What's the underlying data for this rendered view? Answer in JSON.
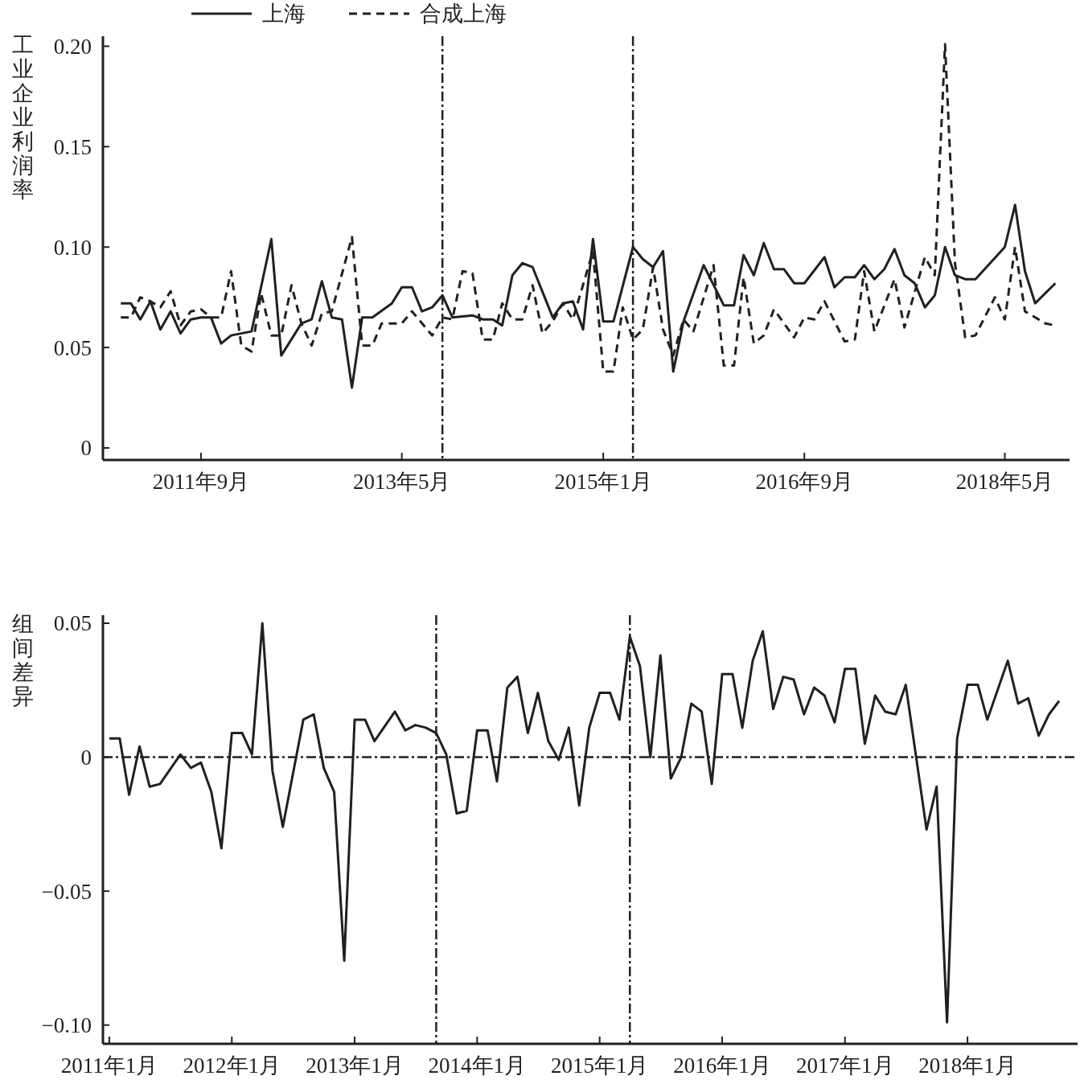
{
  "chart_data": [
    {
      "type": "line",
      "ylabel": "工业企业利润率",
      "legend": "top",
      "xlim": [
        "2010-11-08",
        "2018-11-13"
      ],
      "ylim": [
        -0.006,
        0.205
      ],
      "xticks": [
        {
          "value": "2011-09",
          "label": "2011年9月"
        },
        {
          "value": "2013-05",
          "label": "2013年5月"
        },
        {
          "value": "2015-01",
          "label": "2015年1月"
        },
        {
          "value": "2016-09",
          "label": "2016年9月"
        },
        {
          "value": "2018-05",
          "label": "2018年5月"
        }
      ],
      "yticks": [
        0,
        0.05,
        {
          "value": 0.1,
          "label": "0.10"
        },
        0.15,
        {
          "value": 0.2,
          "label": "0.20"
        }
      ],
      "ref_lines": [
        {
          "axis": "x",
          "value": "2013-09"
        },
        {
          "axis": "x",
          "value": "2015-04"
        }
      ],
      "series": [
        {
          "name": "上海",
          "color": "#231f20",
          "line_style": "solid",
          "x": [
            "2011-01",
            "2011-02",
            "2011-03",
            "2011-04",
            "2011-05",
            "2011-06",
            "2011-07",
            "2011-08",
            "2011-09",
            "2011-10",
            "2011-11",
            "2011-12",
            "2012-01",
            "2012-02",
            "2012-04",
            "2012-05",
            "2012-07",
            "2012-08",
            "2012-09",
            "2012-10",
            "2012-11",
            "2012-12",
            "2013-01",
            "2013-02",
            "2013-04",
            "2013-05",
            "2013-06",
            "2013-07",
            "2013-08",
            "2013-09",
            "2013-10",
            "2013-12",
            "2014-01",
            "2014-02",
            "2014-03",
            "2014-04",
            "2014-05",
            "2014-06",
            "2014-08",
            "2014-09",
            "2014-10",
            "2014-11",
            "2014-12",
            "2015-01",
            "2015-02",
            "2015-04",
            "2015-05",
            "2015-06",
            "2015-07",
            "2015-08",
            "2015-09",
            "2015-11",
            "2016-01",
            "2016-02",
            "2016-03",
            "2016-04",
            "2016-05",
            "2016-06",
            "2016-07",
            "2016-08",
            "2016-09",
            "2016-11",
            "2016-12",
            "2017-01",
            "2017-02",
            "2017-03",
            "2017-04",
            "2017-05",
            "2017-06",
            "2017-07",
            "2017-08",
            "2017-09",
            "2017-10",
            "2017-11",
            "2017-12",
            "2018-01",
            "2018-02",
            "2018-05",
            "2018-06",
            "2018-07",
            "2018-08",
            "2018-10"
          ],
          "values": [
            0.072,
            0.072,
            0.064,
            0.073,
            0.059,
            0.068,
            0.057,
            0.064,
            0.065,
            0.065,
            0.052,
            0.056,
            0.057,
            0.058,
            0.104,
            0.046,
            0.062,
            0.064,
            0.083,
            0.065,
            0.064,
            0.03,
            0.065,
            0.065,
            0.072,
            0.08,
            0.08,
            0.068,
            0.07,
            0.076,
            0.065,
            0.066,
            0.064,
            0.064,
            0.061,
            0.086,
            0.092,
            0.09,
            0.065,
            0.072,
            0.073,
            0.059,
            0.104,
            0.063,
            0.063,
            0.1,
            0.094,
            0.09,
            0.098,
            0.038,
            0.063,
            0.091,
            0.071,
            0.071,
            0.096,
            0.086,
            0.102,
            0.089,
            0.089,
            0.082,
            0.082,
            0.095,
            0.08,
            0.085,
            0.085,
            0.091,
            0.084,
            0.089,
            0.099,
            0.086,
            0.082,
            0.07,
            0.076,
            0.1,
            0.086,
            0.084,
            0.084,
            0.1,
            0.121,
            0.088,
            0.072,
            0.082
          ]
        },
        {
          "name": "合成上海",
          "color": "#231f20",
          "line_style": "dashed",
          "x": [
            "2011-01",
            "2011-02",
            "2011-03",
            "2011-04",
            "2011-05",
            "2011-06",
            "2011-07",
            "2011-08",
            "2011-09",
            "2011-10",
            "2011-11",
            "2011-12",
            "2012-01",
            "2012-02",
            "2012-03",
            "2012-04",
            "2012-05",
            "2012-06",
            "2012-07",
            "2012-08",
            "2012-09",
            "2012-10",
            "2012-12",
            "2013-01",
            "2013-02",
            "2013-03",
            "2013-05",
            "2013-06",
            "2013-08",
            "2013-09",
            "2013-10",
            "2013-11",
            "2013-12",
            "2014-01",
            "2014-02",
            "2014-03",
            "2014-04",
            "2014-05",
            "2014-06",
            "2014-07",
            "2014-08",
            "2014-09",
            "2014-10",
            "2014-12",
            "2015-01",
            "2015-02",
            "2015-03",
            "2015-04",
            "2015-05",
            "2015-06",
            "2015-07",
            "2015-08",
            "2015-09",
            "2015-10",
            "2015-12",
            "2016-01",
            "2016-02",
            "2016-03",
            "2016-04",
            "2016-05",
            "2016-06",
            "2016-08",
            "2016-09",
            "2016-10",
            "2016-11",
            "2017-01",
            "2017-02",
            "2017-03",
            "2017-04",
            "2017-06",
            "2017-07",
            "2017-09",
            "2017-10",
            "2017-11",
            "2017-12",
            "2018-01",
            "2018-02",
            "2018-04",
            "2018-05",
            "2018-06",
            "2018-07",
            "2018-09",
            "2018-10"
          ],
          "values": [
            0.065,
            0.065,
            0.075,
            0.073,
            0.07,
            0.078,
            0.061,
            0.068,
            0.069,
            0.065,
            0.065,
            0.088,
            0.051,
            0.048,
            0.077,
            0.056,
            0.056,
            0.081,
            0.062,
            0.051,
            0.067,
            0.068,
            0.105,
            0.051,
            0.051,
            0.062,
            0.062,
            0.068,
            0.056,
            0.065,
            0.064,
            0.088,
            0.087,
            0.054,
            0.054,
            0.072,
            0.064,
            0.064,
            0.081,
            0.057,
            0.063,
            0.072,
            0.064,
            0.098,
            0.038,
            0.038,
            0.07,
            0.054,
            0.059,
            0.09,
            0.059,
            0.046,
            0.064,
            0.058,
            0.091,
            0.041,
            0.041,
            0.085,
            0.052,
            0.056,
            0.069,
            0.055,
            0.065,
            0.064,
            0.073,
            0.053,
            0.054,
            0.088,
            0.058,
            0.084,
            0.06,
            0.095,
            0.086,
            0.201,
            0.092,
            0.055,
            0.056,
            0.075,
            0.064,
            0.1,
            0.068,
            0.062,
            0.061
          ]
        }
      ]
    },
    {
      "type": "line",
      "ylabel": "组间差异",
      "xlim": [
        "2010-12-13",
        "2018-11-25"
      ],
      "ylim": [
        -0.107,
        0.053
      ],
      "xticks": [
        {
          "value": "2011-01",
          "label": "2011年1月"
        },
        {
          "value": "2012-01",
          "label": "2012年1月"
        },
        {
          "value": "2013-01",
          "label": "2013年1月"
        },
        {
          "value": "2014-01",
          "label": "2014年1月"
        },
        {
          "value": "2015-01",
          "label": "2015年1月"
        },
        {
          "value": "2016-01",
          "label": "2016年1月"
        },
        {
          "value": "2017-01",
          "label": "2017年1月"
        },
        {
          "value": "2018-01",
          "label": "2018年1月"
        }
      ],
      "yticks": [
        {
          "value": -0.1,
          "label": "−0.10"
        },
        {
          "value": -0.05,
          "label": "−0.05"
        },
        0,
        0.05
      ],
      "ref_lines": [
        {
          "axis": "x",
          "value": "2013-09"
        },
        {
          "axis": "x",
          "value": "2015-04"
        },
        {
          "axis": "y",
          "value": 0
        }
      ],
      "series": [
        {
          "color": "#231f20",
          "line_style": "solid",
          "x": [
            "2011-01",
            "2011-02",
            "2011-03",
            "2011-04",
            "2011-05",
            "2011-06",
            "2011-08",
            "2011-09",
            "2011-10",
            "2011-11",
            "2011-12",
            "2012-01",
            "2012-02",
            "2012-03",
            "2012-04",
            "2012-05",
            "2012-06",
            "2012-08",
            "2012-09",
            "2012-10",
            "2012-11",
            "2012-12",
            "2013-01",
            "2013-02",
            "2013-03",
            "2013-05",
            "2013-06",
            "2013-07",
            "2013-08",
            "2013-09",
            "2013-10",
            "2013-11",
            "2013-12",
            "2014-01",
            "2014-02",
            "2014-03",
            "2014-04",
            "2014-05",
            "2014-06",
            "2014-07",
            "2014-08",
            "2014-09",
            "2014-10",
            "2014-11",
            "2014-12",
            "2015-01",
            "2015-02",
            "2015-03",
            "2015-04",
            "2015-05",
            "2015-06",
            "2015-07",
            "2015-08",
            "2015-09",
            "2015-10",
            "2015-11",
            "2015-12",
            "2016-01",
            "2016-02",
            "2016-03",
            "2016-04",
            "2016-05",
            "2016-06",
            "2016-07",
            "2016-08",
            "2016-09",
            "2016-10",
            "2016-11",
            "2016-12",
            "2017-01",
            "2017-02",
            "2017-03",
            "2017-04",
            "2017-05",
            "2017-06",
            "2017-07",
            "2017-08",
            "2017-09",
            "2017-10",
            "2017-11",
            "2017-12",
            "2018-01",
            "2018-02",
            "2018-03",
            "2018-05",
            "2018-06",
            "2018-07",
            "2018-08",
            "2018-09",
            "2018-10"
          ],
          "values": [
            0.007,
            0.007,
            -0.014,
            0.004,
            -0.011,
            -0.01,
            0.001,
            -0.004,
            -0.002,
            -0.013,
            -0.034,
            0.009,
            0.009,
            0.001,
            0.05,
            -0.005,
            -0.026,
            0.014,
            0.016,
            -0.004,
            -0.013,
            -0.076,
            0.014,
            0.014,
            0.006,
            0.017,
            0.01,
            0.012,
            0.011,
            0.009,
            0.001,
            -0.021,
            -0.02,
            0.01,
            0.01,
            -0.009,
            0.026,
            0.03,
            0.009,
            0.024,
            0.006,
            -0.001,
            0.011,
            -0.018,
            0.011,
            0.024,
            0.024,
            0.014,
            0.045,
            0.034,
            0.0,
            0.038,
            -0.008,
            0.0,
            0.02,
            0.017,
            -0.01,
            0.031,
            0.031,
            0.011,
            0.036,
            0.047,
            0.018,
            0.03,
            0.029,
            0.016,
            0.026,
            0.023,
            0.013,
            0.033,
            0.033,
            0.005,
            0.023,
            0.017,
            0.016,
            0.027,
            0.0,
            -0.027,
            -0.011,
            -0.099,
            0.007,
            0.027,
            0.027,
            0.014,
            0.036,
            0.02,
            0.022,
            0.008,
            0.016,
            0.021
          ]
        }
      ]
    }
  ]
}
